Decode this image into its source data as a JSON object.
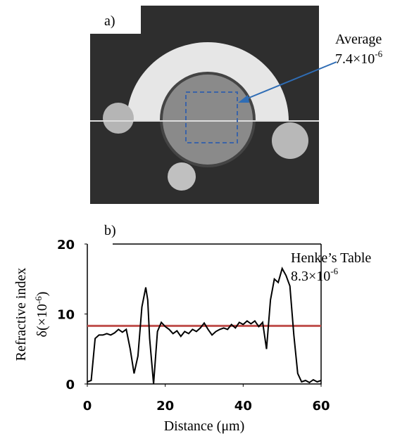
{
  "panel_a": {
    "label": "a)",
    "annotation": "Average",
    "annotation_value": "7.4×10",
    "annotation_exponent": "-6"
  },
  "chart_data": {
    "type": "line",
    "panel_label": "b)",
    "x_label": "Distance (μm)",
    "y_label": "Refractive index",
    "y_unit": {
      "prefix": "δ(×10",
      "exponent": "-6",
      "suffix": ")"
    },
    "xlim": [
      0,
      60
    ],
    "xticks": [
      0,
      20,
      40,
      60
    ],
    "ylim": [
      0,
      20
    ],
    "yticks": [
      0,
      10,
      20
    ],
    "x": [
      0,
      1,
      2,
      3,
      4,
      5,
      6,
      7,
      8,
      9,
      10,
      11,
      12,
      13,
      14,
      15,
      15.5,
      16,
      17,
      18,
      19,
      20,
      21,
      22,
      23,
      24,
      25,
      26,
      27,
      28,
      29,
      30,
      31,
      32,
      33,
      34,
      35,
      36,
      37,
      38,
      39,
      40,
      41,
      42,
      43,
      44,
      45,
      46,
      47,
      48,
      49,
      50,
      51,
      52,
      53,
      54,
      55,
      56,
      57,
      58,
      59,
      60
    ],
    "series": [
      {
        "color": "#000000",
        "values": [
          0.3,
          0.5,
          6.5,
          7.0,
          7.0,
          7.2,
          7.0,
          7.3,
          7.8,
          7.4,
          7.8,
          5.0,
          1.5,
          4.0,
          11.0,
          13.8,
          12.0,
          6.5,
          0,
          7.5,
          8.8,
          8.2,
          7.8,
          7.2,
          7.6,
          6.8,
          7.5,
          7.2,
          7.8,
          7.5,
          8.0,
          8.7,
          7.8,
          7.0,
          7.5,
          7.8,
          8.0,
          7.8,
          8.5,
          8.0,
          8.8,
          8.5,
          9.0,
          8.6,
          9.0,
          8.2,
          8.8,
          5.0,
          12.0,
          15.0,
          14.5,
          16.5,
          15.5,
          14.0,
          7.0,
          1.5,
          0.3,
          0.5,
          0.2,
          0.6,
          0.3,
          0.5
        ]
      }
    ],
    "reference": {
      "name": "Henke’s Table",
      "value": 8.3,
      "label": "8.3×10",
      "exponent": "-6",
      "color": "#c0504d"
    }
  }
}
